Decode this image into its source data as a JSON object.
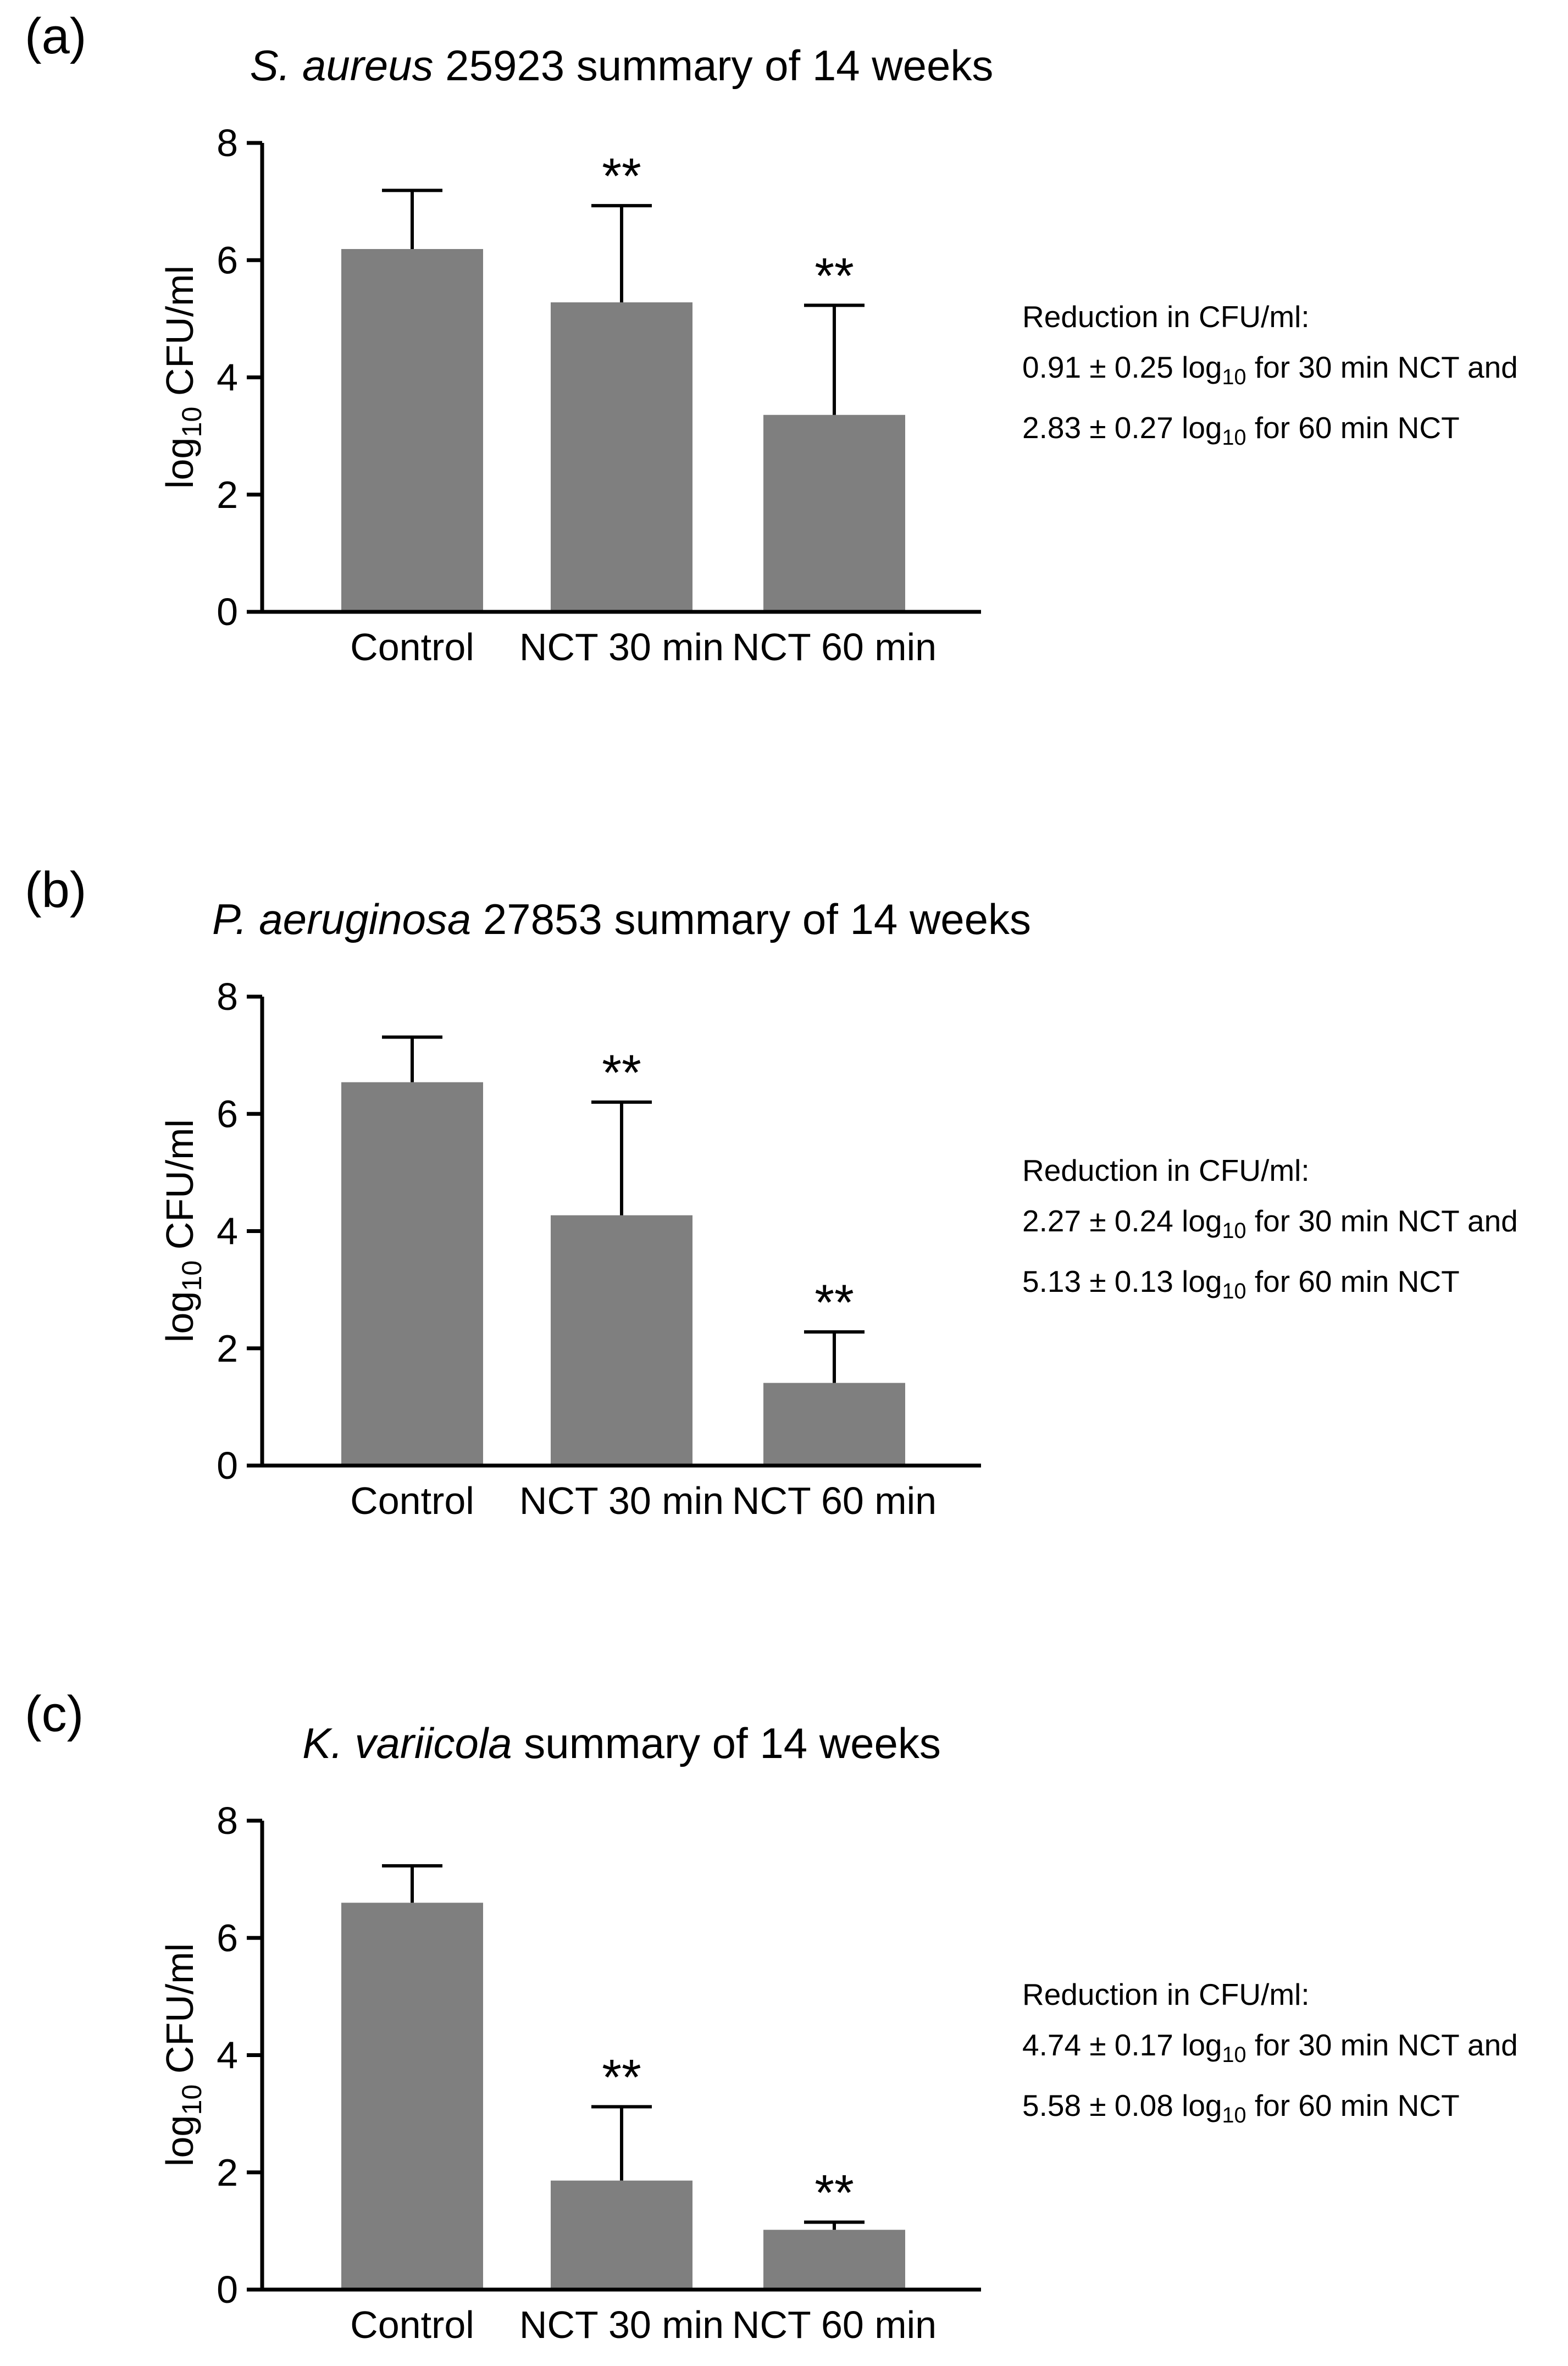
{
  "page": {
    "background": "#ffffff"
  },
  "style": {
    "bar_color": "#7f7f7f",
    "axis_color": "#000000",
    "text_color": "#000000"
  },
  "chart_data": [
    {
      "type": "bar",
      "panel_label": "(a)",
      "title_italic": "S. aureus",
      "title_rest": " 25923 summary of 14 weeks",
      "ylabel": {
        "pre": "log",
        "sub": "10",
        "post": " CFU/ml"
      },
      "categories": [
        "Control",
        "NCT 30 min",
        "NCT 60 min"
      ],
      "values": [
        6.19,
        5.28,
        3.36
      ],
      "errors_upper": [
        1.0,
        1.65,
        1.87
      ],
      "significance": [
        "",
        "**",
        "**"
      ],
      "ylim": [
        0,
        8
      ],
      "yticks": [
        0,
        2,
        4,
        6,
        8
      ],
      "grid": "off",
      "annotation": {
        "header": "Reduction in CFU/ml:",
        "line1": {
          "pre": "0.91 ± 0.25 log",
          "sub": "10",
          "post": " for 30 min NCT and"
        },
        "line2": {
          "pre": "2.83 ± 0.27 log",
          "sub": "10",
          "post": " for 60 min NCT"
        }
      }
    },
    {
      "type": "bar",
      "panel_label": "(b)",
      "title_italic": "P. aeruginosa",
      "title_rest": " 27853 summary of 14 weeks",
      "ylabel": {
        "pre": "log",
        "sub": "10",
        "post": " CFU/ml"
      },
      "categories": [
        "Control",
        "NCT 30 min",
        "NCT 60 min"
      ],
      "values": [
        6.54,
        4.27,
        1.41
      ],
      "errors_upper": [
        0.77,
        1.93,
        0.87
      ],
      "significance": [
        "",
        "**",
        "**"
      ],
      "ylim": [
        0,
        8
      ],
      "yticks": [
        0,
        2,
        4,
        6,
        8
      ],
      "grid": "off",
      "annotation": {
        "header": "Reduction in CFU/ml:",
        "line1": {
          "pre": "2.27 ± 0.24 log",
          "sub": "10",
          "post": " for 30 min NCT and"
        },
        "line2": {
          "pre": "5.13 ± 0.13 log",
          "sub": "10",
          "post": " for 60 min NCT"
        }
      }
    },
    {
      "type": "bar",
      "panel_label": "(c)",
      "title_italic": "K. variicola",
      "title_rest": " summary of 14 weeks",
      "ylabel": {
        "pre": "log",
        "sub": "10",
        "post": " CFU/ml"
      },
      "categories": [
        "Control",
        "NCT 30 min",
        "NCT 60 min"
      ],
      "values": [
        6.6,
        1.86,
        1.02
      ],
      "errors_upper": [
        0.63,
        1.26,
        0.13
      ],
      "significance": [
        "",
        "**",
        "**"
      ],
      "ylim": [
        0,
        8
      ],
      "yticks": [
        0,
        2,
        4,
        6,
        8
      ],
      "grid": "off",
      "annotation": {
        "header": "Reduction in CFU/ml:",
        "line1": {
          "pre": "4.74 ± 0.17 log",
          "sub": "10",
          "post": " for 30 min NCT and"
        },
        "line2": {
          "pre": "5.58 ± 0.08 log",
          "sub": "10",
          "post": " for 60 min NCT"
        }
      }
    }
  ]
}
